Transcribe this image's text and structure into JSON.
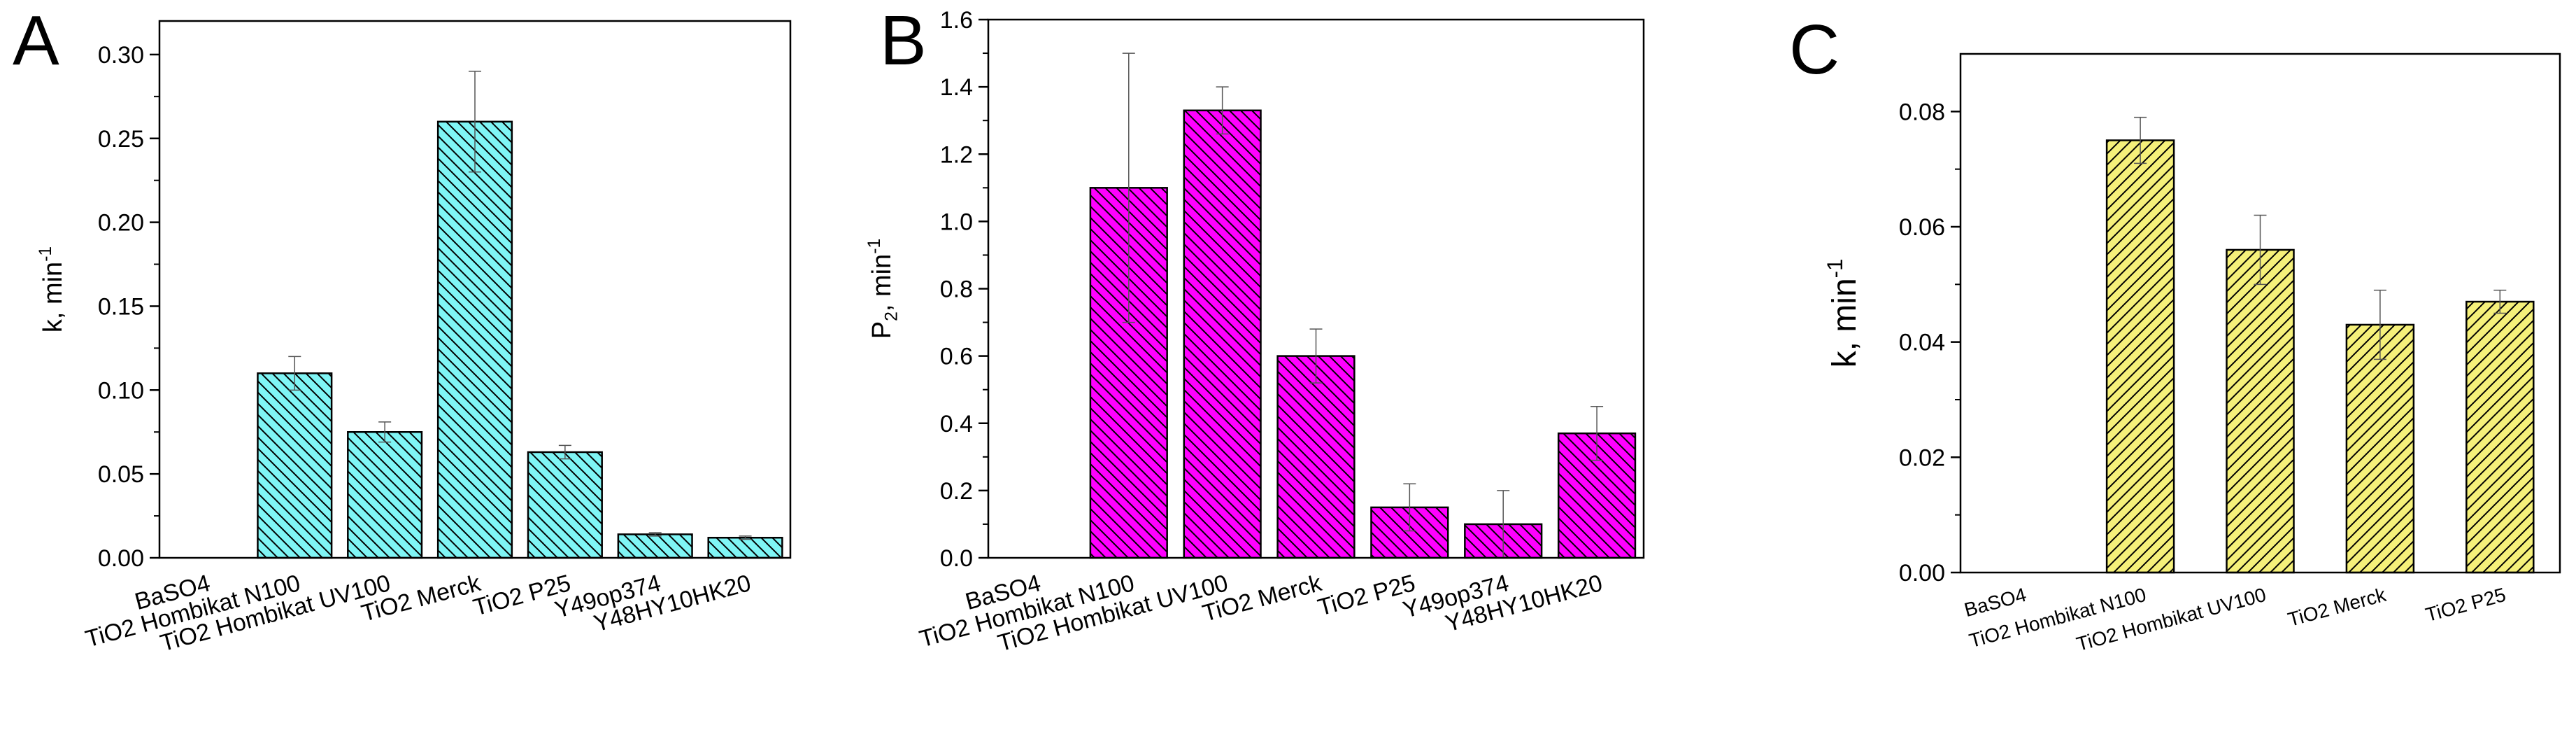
{
  "chart_data": [
    {
      "panel": "A",
      "type": "bar",
      "categories": [
        "BaSO4",
        "TiO2 Hombikat N100",
        "TiO2 Hombikat UV100",
        "TiO2 Merck",
        "TiO2 P25",
        "Y49op374",
        "Y48HY10HK20"
      ],
      "values": [
        0,
        0.11,
        0.075,
        0.26,
        0.063,
        0.014,
        0.012
      ],
      "errors": [
        0,
        0.01,
        0.006,
        0.03,
        0.004,
        0.001,
        0.001
      ],
      "ylabel_main": "k, min",
      "ylabel_sup": "-1",
      "ylim": [
        0,
        0.32
      ],
      "yticks": [
        "0.00",
        "0.05",
        "0.10",
        "0.15",
        "0.20",
        "0.25",
        "0.30"
      ],
      "color": "#7ff5f5",
      "hatch": "backslash"
    },
    {
      "panel": "B",
      "type": "bar",
      "categories": [
        "BaSO4",
        "TiO2 Hombikat N100",
        "TiO2 Hombikat UV100",
        "TiO2 Merck",
        "TiO2 P25",
        "Y49op374",
        "Y48HY10HK20"
      ],
      "values": [
        0,
        1.1,
        1.33,
        0.6,
        0.15,
        0.1,
        0.37
      ],
      "errors": [
        0,
        0.4,
        0.07,
        0.08,
        0.07,
        0.1,
        0.08
      ],
      "ylabel_main": "P",
      "ylabel_sub": "2",
      "ylabel_rest": ", min",
      "ylabel_sup": "-1",
      "ylim": [
        0,
        1.6
      ],
      "yticks": [
        "0.0",
        "0.2",
        "0.4",
        "0.6",
        "0.8",
        "1.0",
        "1.2",
        "1.4",
        "1.6"
      ],
      "color": "#ff00ff",
      "hatch": "backslash"
    },
    {
      "panel": "C",
      "type": "bar",
      "categories": [
        "BaSO4",
        "TiO2 Hombikat N100",
        "TiO2 Hombikat UV100",
        "TiO2 Merck",
        "TiO2 P25"
      ],
      "values": [
        0,
        0.075,
        0.056,
        0.043,
        0.047
      ],
      "errors": [
        0,
        0.004,
        0.006,
        0.006,
        0.002
      ],
      "ylabel_main": "k, min",
      "ylabel_sup": "-1",
      "ylim": [
        0,
        0.09
      ],
      "yticks": [
        "0.00",
        "0.02",
        "0.04",
        "0.06",
        "0.08"
      ],
      "color": "#f5f07a",
      "hatch": "slash"
    }
  ]
}
